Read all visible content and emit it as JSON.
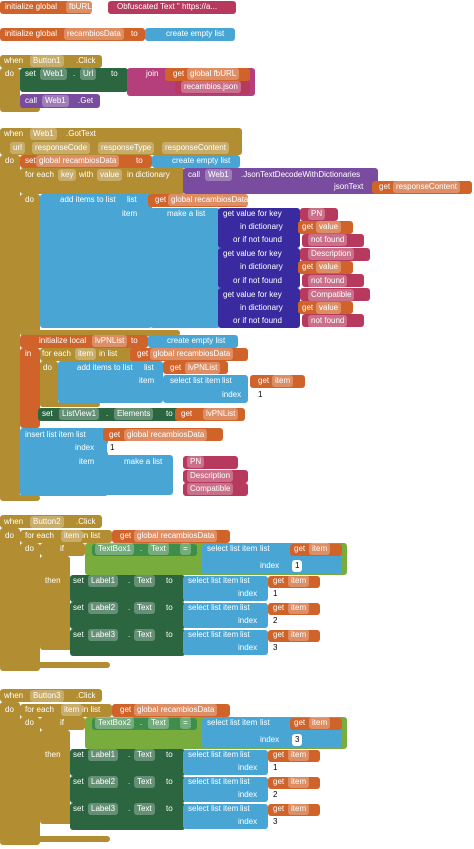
{
  "labels": [
    "initialize global",
    "fbURL",
    "to",
    "Obfuscated Text \" https://a...",
    "initialize global",
    "recambiosData",
    "to",
    "create empty list",
    "when",
    "Button1",
    ".Click",
    "do",
    "set",
    "Web1",
    ".",
    "Url",
    "to",
    "join",
    "get",
    "global fbURL",
    "recambios.json",
    "call",
    "Web1",
    ".Get",
    "when",
    "Web1",
    ".GotText",
    "url",
    "responseCode",
    "responseType",
    "responseContent",
    "do",
    "set",
    "global recambiosData",
    "to",
    "create empty list",
    "for each",
    "key",
    "with",
    "value",
    "in dictionary",
    "call",
    "Web1",
    ".JsonTextDecodeWithDictionaries",
    "jsonText",
    "get",
    "responseContent",
    "do",
    "add items to list",
    "list",
    "get",
    "global recambiosData",
    "item",
    "make a list",
    "get value for key",
    "PN",
    "in dictionary",
    "get",
    "value",
    "or if not found",
    "not found",
    "get value for key",
    "Description",
    "in dictionary",
    "get",
    "value",
    "or if not found",
    "not found",
    "get value for key",
    "Compatible",
    "in dictionary",
    "get",
    "value",
    "or if not found",
    "not found",
    "initialize local",
    "lvPNList",
    "to",
    "create empty list",
    "in",
    "for each",
    "item",
    "in list",
    "get",
    "global recambiosData",
    "do",
    "add items to list",
    "list",
    "get",
    "lvPNList",
    "item",
    "select list item",
    "list",
    "get",
    "item",
    "index",
    "1",
    "set",
    "ListView1",
    ".",
    "Elements",
    "to",
    "get",
    "lvPNList",
    "insert list item",
    "list",
    "get",
    "global recambiosData",
    "index",
    "1",
    "item",
    "make a list",
    "PN",
    "Description",
    "Compatible",
    "when",
    "Button2",
    ".Click",
    "do",
    "for each",
    "item",
    "in list",
    "get",
    "global recambiosData",
    "do",
    "if",
    "TextBox1",
    ".",
    "Text",
    "=",
    "select list item",
    "list",
    "get",
    "item",
    "index",
    "1",
    "then",
    "set",
    "Label1",
    ".",
    "Text",
    "to",
    "select list item",
    "list",
    "get",
    "item",
    "index",
    "1",
    "set",
    "Label2",
    ".",
    "Text",
    "to",
    "select list item",
    "list",
    "get",
    "item",
    "index",
    "2",
    "set",
    "Label3",
    ".",
    "Text",
    "to",
    "select list item",
    "list",
    "get",
    "item",
    "index",
    "3",
    "when",
    "Button3",
    ".Click",
    "do",
    "for each",
    "item",
    "in list",
    "get",
    "global recambiosData",
    "do",
    "if",
    "TextBox2",
    ".",
    "Text",
    "=",
    "select list item",
    "list",
    "get",
    "item",
    "index",
    "3",
    "then",
    "set",
    "Label1",
    ".",
    "Text",
    "to",
    "select list item",
    "list",
    "get",
    "item",
    "index",
    "1",
    "set",
    "Label2",
    ".",
    "Text",
    "to",
    "select list item",
    "list",
    "get",
    "item",
    "index",
    "2",
    "set",
    "Label3",
    ".",
    "Text",
    "to",
    "select list item",
    "list",
    "get",
    "item",
    "index",
    "3"
  ]
}
